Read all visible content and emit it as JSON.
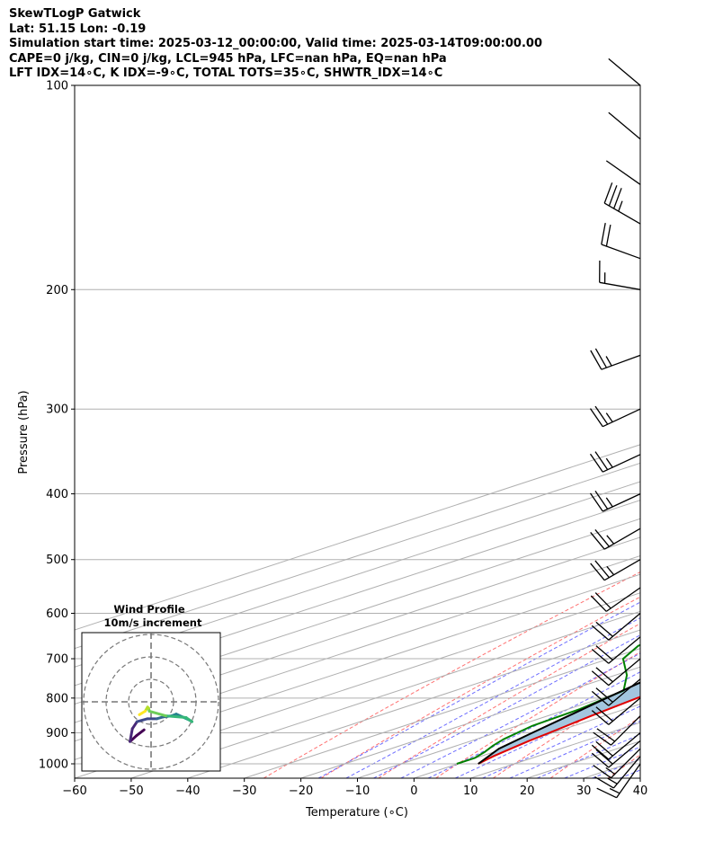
{
  "header": {
    "line1": "SkewTLogP Gatwick",
    "line2": "Lat: 51.15   Lon: -0.19",
    "line3": "Simulation start time: 2025-03-12_00:00:00, Valid time: 2025-03-14T09:00:00.00",
    "line4": "CAPE=0 j/kg, CIN=0 j/kg, LCL=945 hPa, LFC=nan hPa, EQ=nan hPa",
    "line5": "LFT IDX=14∘C, K IDX=-9∘C, TOTAL TOTS=35∘C, SHWTR_IDX=14∘C"
  },
  "chart_data": {
    "type": "line",
    "xlabel": "Temperature (∘C)",
    "ylabel": "Pressure (hPa)",
    "xlim": [
      -60,
      40
    ],
    "ylim": [
      1050,
      100
    ],
    "y_scale": "log",
    "skew": true,
    "x_ticks": [
      -60,
      -50,
      -40,
      -30,
      -20,
      -10,
      0,
      10,
      20,
      30,
      40
    ],
    "x_tick_labels": [
      "−60",
      "−50",
      "−40",
      "−30",
      "−20",
      "−10",
      "0",
      "10",
      "20",
      "30",
      "40"
    ],
    "y_ticks": [
      100,
      200,
      300,
      400,
      500,
      600,
      700,
      800,
      900,
      1000
    ],
    "y_tick_labels": [
      "100",
      "200",
      "300",
      "400",
      "500",
      "600",
      "700",
      "800",
      "900",
      "1000"
    ],
    "grid": true,
    "series": [
      {
        "color": "#e00000",
        "points": [
          [
            1000,
            3.6
          ],
          [
            975,
            2.2
          ],
          [
            950,
            1.2
          ],
          [
            925,
            0.2
          ],
          [
            900,
            -0.6
          ],
          [
            850,
            -2.3
          ],
          [
            800,
            -3.8
          ],
          [
            750,
            -4.4
          ],
          [
            700,
            -5.0
          ],
          [
            650,
            -4.5
          ],
          [
            600,
            -5.2
          ],
          [
            550,
            -7.4
          ],
          [
            500,
            -10.7
          ],
          [
            450,
            -14.8
          ],
          [
            400,
            -19.5
          ],
          [
            350,
            -25.0
          ],
          [
            300,
            -31.0
          ],
          [
            280,
            -33.0
          ],
          [
            265,
            -33.5
          ],
          [
            250,
            -32.5
          ],
          [
            230,
            -33.0
          ],
          [
            205,
            -33.5
          ],
          [
            190,
            -36.5
          ],
          [
            175,
            -39.0
          ],
          [
            160,
            -42.5
          ],
          [
            148,
            -45.0
          ],
          [
            135,
            -48.5
          ],
          [
            120,
            -51.0
          ],
          [
            110,
            -53.0
          ],
          [
            100,
            -55.0
          ]
        ]
      },
      {
        "color": "#008000",
        "points": [
          [
            1000,
            -0.2
          ],
          [
            980,
            -0.2
          ],
          [
            960,
            -1.7
          ],
          [
            940,
            -3.6
          ],
          [
            920,
            -5.2
          ],
          [
            880,
            -7.3
          ],
          [
            830,
            -8.0
          ],
          [
            780,
            -10.2
          ],
          [
            740,
            -18.0
          ],
          [
            700,
            -27.5
          ],
          [
            670,
            -31.8
          ],
          [
            630,
            -33.0
          ],
          [
            580,
            -32.0
          ],
          [
            540,
            -35.2
          ],
          [
            510,
            -38.8
          ],
          [
            470,
            -39.0
          ],
          [
            420,
            -41.5
          ],
          [
            390,
            -44.5
          ],
          [
            350,
            -47.0
          ],
          [
            310,
            -48.5
          ],
          [
            285,
            -51.0
          ],
          [
            262,
            -54.5
          ],
          [
            240,
            -56.5
          ],
          [
            210,
            -59.0
          ],
          [
            185,
            -63.0
          ],
          [
            163,
            -67.0
          ],
          [
            150,
            -69.0
          ],
          [
            140,
            -68.8
          ],
          [
            125,
            -69.0
          ],
          [
            100,
            -70.0
          ]
        ]
      },
      {
        "color": "#000000",
        "points": [
          [
            1000,
            3.6
          ],
          [
            950,
            -0.9
          ],
          [
            900,
            -3.6
          ],
          [
            850,
            -6.3
          ],
          [
            800,
            -9.2
          ],
          [
            750,
            -12.2
          ],
          [
            700,
            -15.4
          ],
          [
            650,
            -18.8
          ],
          [
            600,
            -22.6
          ],
          [
            550,
            -26.6
          ],
          [
            500,
            -31.3
          ],
          [
            450,
            -36.3
          ],
          [
            400,
            -42.2
          ],
          [
            350,
            -48.9
          ],
          [
            300,
            -56.9
          ],
          [
            250,
            -66.3
          ],
          [
            200,
            -78.0
          ],
          [
            150,
            -93.0
          ],
          [
            100,
            -114.0
          ]
        ]
      }
    ],
    "wind_barbs": [
      {
        "p": 100,
        "deg": 310,
        "kt": 50
      },
      {
        "p": 120,
        "deg": 310,
        "kt": 50
      },
      {
        "p": 140,
        "deg": 305,
        "kt": 50
      },
      {
        "p": 160,
        "deg": 300,
        "kt": 35
      },
      {
        "p": 180,
        "deg": 290,
        "kt": 20
      },
      {
        "p": 200,
        "deg": 280,
        "kt": 15
      },
      {
        "p": 250,
        "deg": 250,
        "kt": 25
      },
      {
        "p": 300,
        "deg": 245,
        "kt": 25
      },
      {
        "p": 350,
        "deg": 245,
        "kt": 25
      },
      {
        "p": 400,
        "deg": 245,
        "kt": 25
      },
      {
        "p": 450,
        "deg": 240,
        "kt": 25
      },
      {
        "p": 500,
        "deg": 240,
        "kt": 25
      },
      {
        "p": 550,
        "deg": 235,
        "kt": 20
      },
      {
        "p": 600,
        "deg": 230,
        "kt": 20
      },
      {
        "p": 650,
        "deg": 230,
        "kt": 20
      },
      {
        "p": 700,
        "deg": 230,
        "kt": 20
      },
      {
        "p": 750,
        "deg": 230,
        "kt": 20
      },
      {
        "p": 800,
        "deg": 230,
        "kt": 20
      },
      {
        "p": 850,
        "deg": 225,
        "kt": 20
      },
      {
        "p": 900,
        "deg": 230,
        "kt": 20
      },
      {
        "p": 925,
        "deg": 230,
        "kt": 20
      },
      {
        "p": 950,
        "deg": 225,
        "kt": 15
      },
      {
        "p": 975,
        "deg": 220,
        "kt": 15
      },
      {
        "p": 1000,
        "deg": 215,
        "kt": 15
      }
    ],
    "hodograph": {
      "title_line1": "Wind Profile",
      "title_line2": "10m/s increment",
      "points": [
        [
          -1.2,
          -4.8
        ],
        [
          -2.5,
          -5.8
        ],
        [
          -3.6,
          -6.8
        ],
        [
          -3.2,
          -4.6
        ],
        [
          -2.4,
          -3.4
        ],
        [
          -0.6,
          -2.9
        ],
        [
          1.0,
          -2.9
        ],
        [
          2.0,
          -2.6
        ],
        [
          3.5,
          -2.4
        ],
        [
          4.3,
          -2.1
        ],
        [
          5.4,
          -2.6
        ],
        [
          6.5,
          -3.1
        ],
        [
          7.0,
          -3.4
        ],
        [
          6.0,
          -2.7
        ],
        [
          2.5,
          -2.4
        ],
        [
          -0.3,
          -1.6
        ],
        [
          -0.4,
          -1.1
        ],
        [
          -0.6,
          -0.9
        ],
        [
          -1.0,
          -1.6
        ],
        [
          -2.0,
          -2.2
        ]
      ]
    }
  }
}
